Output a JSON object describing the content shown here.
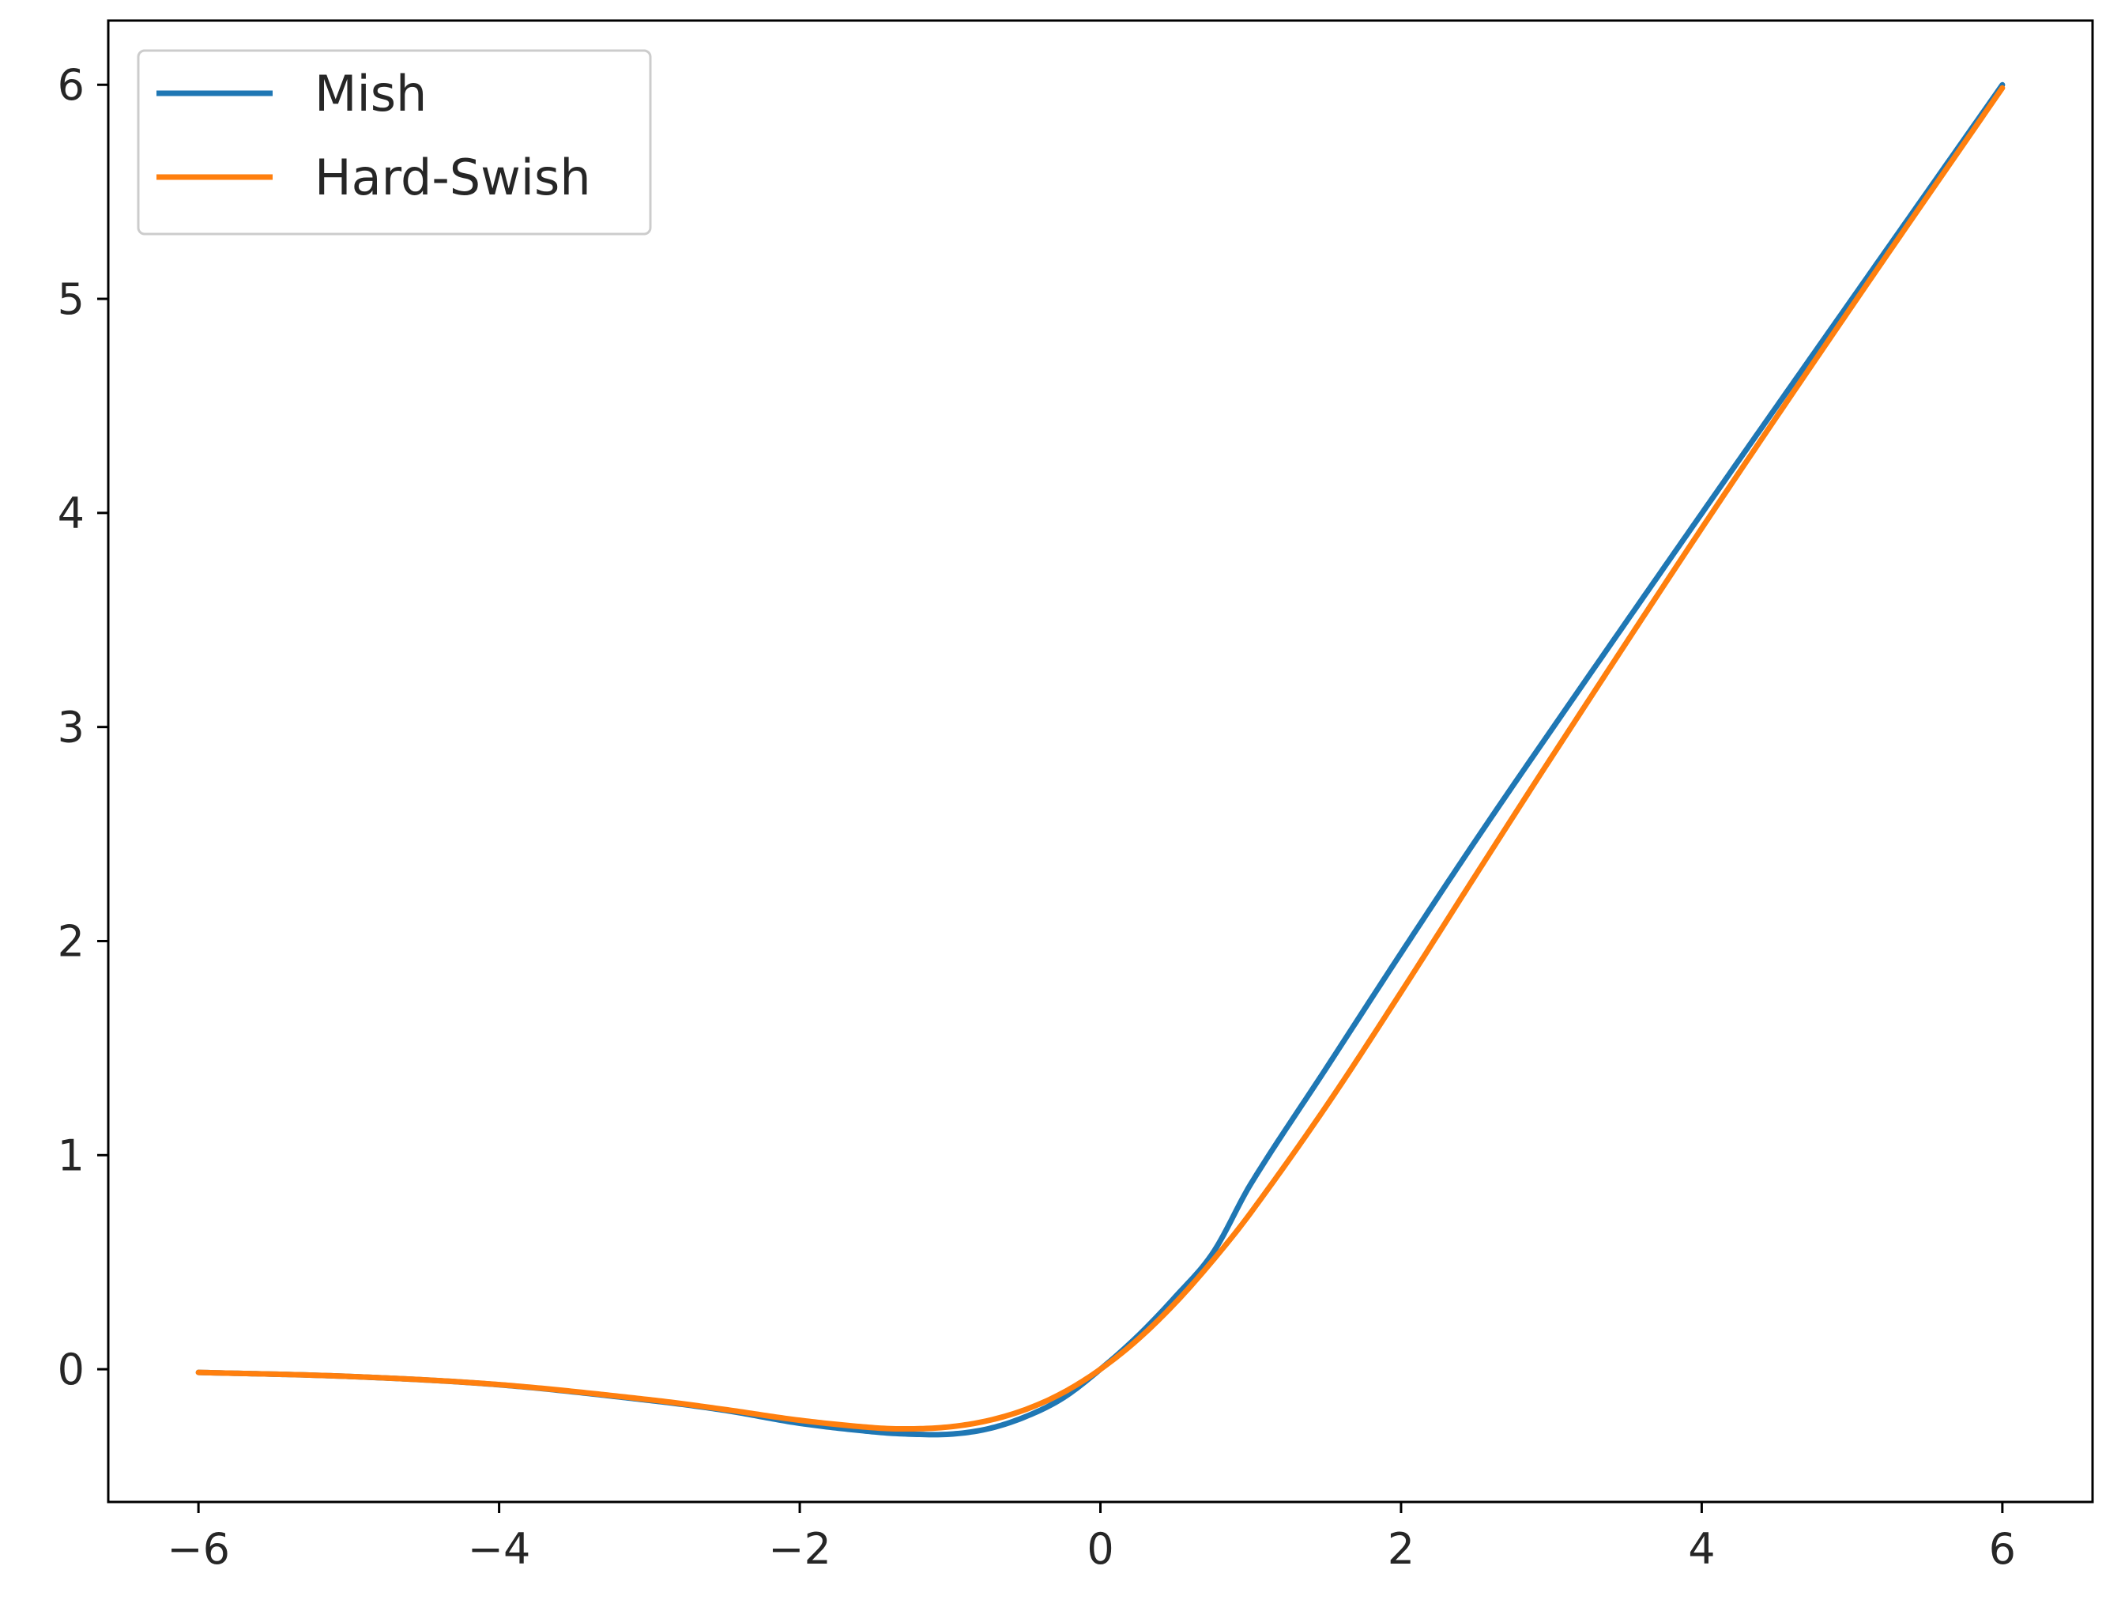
{
  "chart_data": {
    "type": "line",
    "title": "",
    "xlabel": "",
    "ylabel": "",
    "xlim": [
      -6.6,
      6.6
    ],
    "ylim": [
      -0.62,
      6.3
    ],
    "xticks": [
      -6,
      -4,
      -2,
      0,
      2,
      4,
      6
    ],
    "yticks": [
      0,
      1,
      2,
      3,
      4,
      5,
      6
    ],
    "xtick_labels": [
      "−6",
      "−4",
      "−2",
      "0",
      "2",
      "4",
      "6"
    ],
    "ytick_labels": [
      "0",
      "1",
      "2",
      "3",
      "4",
      "5",
      "6"
    ],
    "grid": false,
    "legend_position": "top-left",
    "x_range": [
      -6,
      6
    ],
    "series": [
      {
        "name": "Mish",
        "color": "#1f77b4",
        "x": [
          -6,
          -5,
          -4,
          -3,
          -2.5,
          -2,
          -1.5,
          -1.25,
          -1,
          -0.75,
          -0.5,
          -0.25,
          0,
          0.25,
          0.5,
          0.75,
          1,
          1.5,
          2,
          2.5,
          3,
          4,
          5,
          6
        ],
        "y": [
          -0.0149,
          -0.0336,
          -0.0727,
          -0.1456,
          -0.1919,
          -0.2525,
          -0.293,
          -0.3034,
          -0.3034,
          -0.2787,
          -0.2222,
          -0.1347,
          0,
          0.1561,
          0.3396,
          0.5453,
          0.8651,
          1.4039,
          1.944,
          2.4738,
          2.9865,
          3.9974,
          4.9995,
          5.9999
        ]
      },
      {
        "name": "Hard-Swish",
        "color": "#ff7f0e",
        "x": [
          -6,
          -5,
          -4,
          -3,
          -2.5,
          -2,
          -1.5,
          -1.25,
          -1,
          -0.75,
          -0.5,
          -0.25,
          0,
          0.25,
          0.5,
          0.75,
          1,
          1.5,
          2,
          2.5,
          3,
          4,
          5,
          6
        ],
        "y": [
          -0.0148,
          -0.0335,
          -0.0719,
          -0.1423,
          -0.1879,
          -0.2384,
          -0.2736,
          -0.2784,
          -0.2689,
          -0.2404,
          -0.1888,
          -0.11,
          0,
          0.14,
          0.3112,
          0.51,
          0.7311,
          1.2264,
          1.7616,
          2.312,
          2.8577,
          3.9281,
          4.9665,
          5.9852
        ]
      }
    ]
  }
}
